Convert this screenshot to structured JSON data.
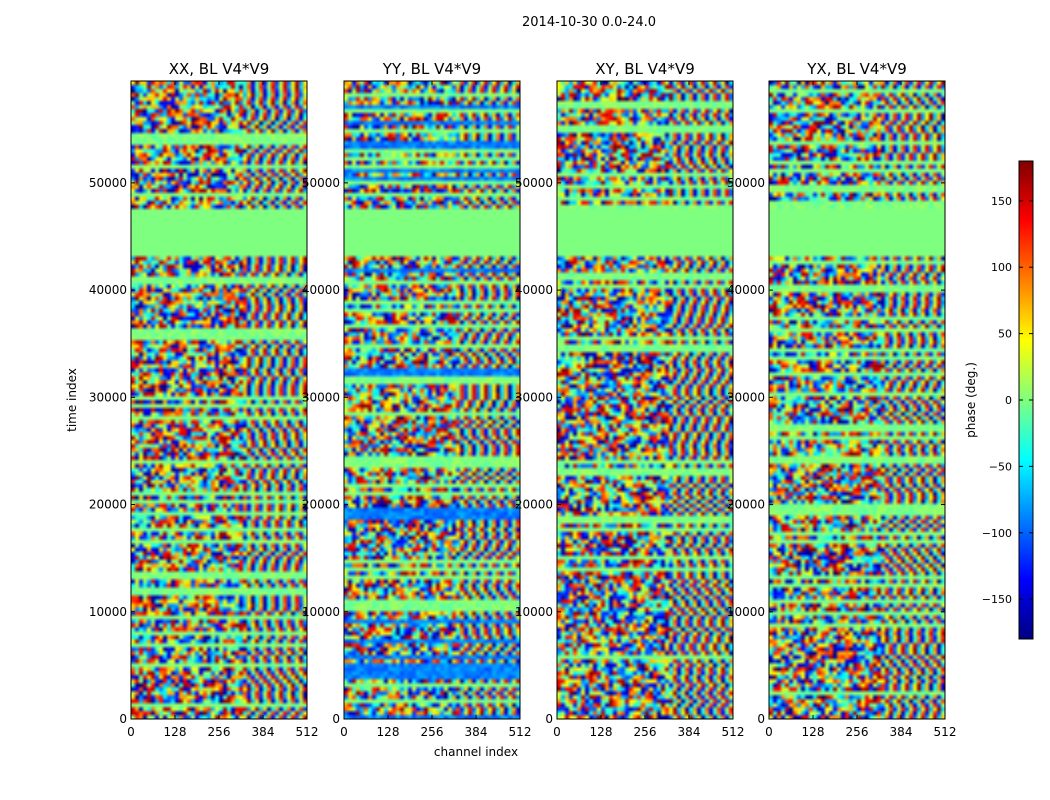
{
  "chart_data": {
    "type": "heatmap",
    "suptitle": "2014-10-30 0.0-24.0",
    "xlabel": "channel index",
    "ylabel": "time index",
    "xlim": [
      0,
      512
    ],
    "ylim": [
      0,
      59500
    ],
    "xticks": [
      0,
      128,
      256,
      384,
      512
    ],
    "yticks": [
      0,
      10000,
      20000,
      30000,
      40000,
      50000
    ],
    "panels": [
      {
        "title": "XX, BL V4*V9"
      },
      {
        "title": "YY, BL V4*V9"
      },
      {
        "title": "XY, BL V4*V9"
      },
      {
        "title": "YX, BL V4*V9"
      }
    ],
    "colorbar": {
      "label": "phase (deg.)",
      "range": [
        -180,
        180
      ],
      "ticks": [
        -150,
        -100,
        -50,
        0,
        50,
        100,
        150
      ],
      "colormap": "jet"
    }
  },
  "colors": {
    "flag_green": "#7fff7f",
    "axis": "#000000",
    "jet_stops": [
      "#00007f",
      "#0000ff",
      "#007fff",
      "#00ffff",
      "#7fff7f",
      "#ffff00",
      "#ff7f00",
      "#ff0000",
      "#7f0000"
    ]
  }
}
